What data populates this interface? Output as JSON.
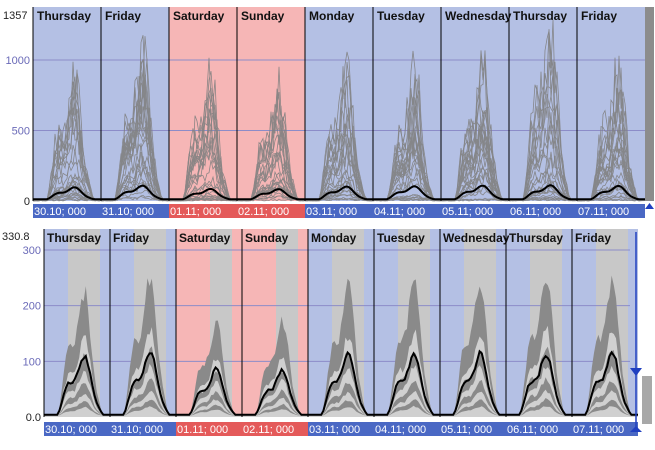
{
  "colors": {
    "weekday_bg": "#b4c0e4",
    "weekend_bg": "#f6b6b6",
    "date_bar_weekday": "#4a68c4",
    "date_bar_weekend": "#e45a5a",
    "axis_text_top": "#222222",
    "axis_text_bottom": "#6a6ab8",
    "grid_line": "#8c8cc8",
    "trace_grey": "#808080",
    "band_light": "#d0d0d0",
    "band_dark": "#8a8a8a",
    "mean_line": "#000000",
    "scroll_arrow": "#2040c0"
  },
  "days": [
    {
      "name": "Thursday",
      "date_label": "30.10; 000",
      "weekend": false
    },
    {
      "name": "Friday",
      "date_label": "31.10; 000",
      "weekend": false
    },
    {
      "name": "Saturday",
      "date_label": "01.11; 000",
      "weekend": true
    },
    {
      "name": "Sunday",
      "date_label": "02.11; 000",
      "weekend": true
    },
    {
      "name": "Monday",
      "date_label": "03.11; 000",
      "weekend": false
    },
    {
      "name": "Tuesday",
      "date_label": "04.11; 000",
      "weekend": false
    },
    {
      "name": "Wednesday",
      "date_label": "05.11; 000",
      "weekend": false
    },
    {
      "name": "Thursday",
      "date_label": "06.11; 000",
      "weekend": false
    },
    {
      "name": "Friday",
      "date_label": "07.11; 000",
      "weekend": false
    }
  ],
  "chart_data": [
    {
      "type": "line",
      "panel": "top",
      "y_max_label": "1357",
      "y_ticks": [
        {
          "value": 0,
          "label": "0"
        },
        {
          "value": 500,
          "label": "500"
        },
        {
          "value": 1000,
          "label": "1000"
        }
      ],
      "ylim": [
        0,
        1357
      ],
      "daily_peaks_grey_max": [
        960,
        1150,
        950,
        920,
        950,
        920,
        1040,
        1320,
        1040
      ],
      "daily_mean_peak": [
        92,
        105,
        80,
        78,
        98,
        100,
        105,
        108,
        103
      ],
      "grid": true
    },
    {
      "type": "area",
      "panel": "bottom",
      "y_max_label": "330.8",
      "y_ticks": [
        {
          "value": 0,
          "label": "0.0"
        },
        {
          "value": 100,
          "label": "100"
        },
        {
          "value": 200,
          "label": "200"
        },
        {
          "value": 300,
          "label": "300"
        }
      ],
      "ylim": [
        0,
        330.8
      ],
      "daily_band_max": [
        240,
        268,
        180,
        188,
        255,
        262,
        262,
        272,
        268
      ],
      "daily_mean_peak": [
        115,
        122,
        88,
        87,
        118,
        118,
        118,
        118,
        120
      ],
      "grid": true
    }
  ]
}
